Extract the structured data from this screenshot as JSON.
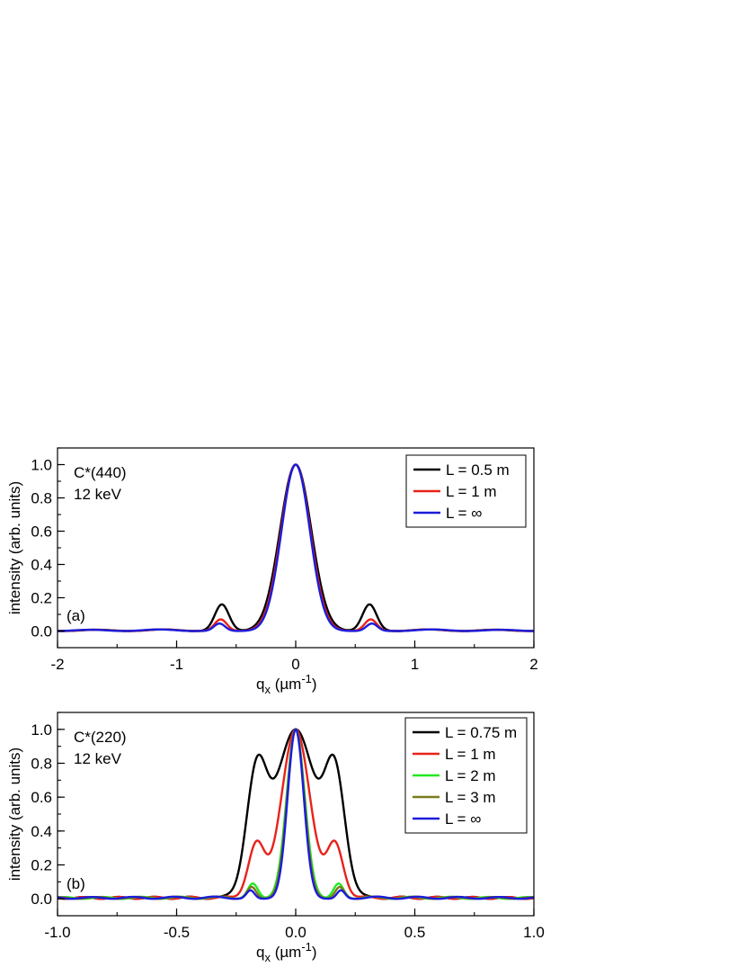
{
  "chart_data": [
    {
      "type": "line",
      "panel_label": "(a)",
      "annotation": [
        "C*(440)",
        "12 keV"
      ],
      "xlabel": "q",
      "xlabel_sub": "x",
      "xlabel_units": " (µm",
      "xlabel_sup": "-1",
      "xlabel_close": ")",
      "ylabel": "intensity (arb. units)",
      "xlim": [
        -2,
        2
      ],
      "ylim": [
        -0.1,
        1.1
      ],
      "xticks": [
        -2,
        -1,
        0,
        1,
        2
      ],
      "xtick_labels": [
        "-2",
        "-1",
        "0",
        "1",
        "2"
      ],
      "yticks": [
        0.0,
        0.2,
        0.4,
        0.6,
        0.8,
        1.0
      ],
      "ytick_labels": [
        "0.0",
        "0.2",
        "0.4",
        "0.6",
        "0.8",
        "1.0"
      ],
      "legend_position": "top-right",
      "grid": false,
      "series": [
        {
          "name": "L = 0.5 m",
          "color": "#000000",
          "width": 0.31,
          "side_level": 0.16,
          "side_pos": 0.62,
          "side_width": 0.14
        },
        {
          "name": "L = 1 m",
          "color": "#e8221a",
          "width": 0.29,
          "side_level": 0.07,
          "side_pos": 0.63,
          "side_width": 0.12
        },
        {
          "name": "L = ∞",
          "color": "#1c1cd9",
          "width": 0.28,
          "side_level": 0.045,
          "side_pos": 0.64,
          "side_width": 0.11
        }
      ]
    },
    {
      "type": "line",
      "panel_label": "(b)",
      "annotation": [
        "C*(220)",
        "12 keV"
      ],
      "xlabel": "q",
      "xlabel_sub": "x",
      "xlabel_units": " (µm",
      "xlabel_sup": "-1",
      "xlabel_close": ")",
      "ylabel": "intensity (arb. units)",
      "xlim": [
        -1.0,
        1.0
      ],
      "ylim": [
        -0.1,
        1.1
      ],
      "xticks": [
        -1.0,
        -0.5,
        0.0,
        0.5,
        1.0
      ],
      "xtick_labels": [
        "-1.0",
        "-0.5",
        "0.0",
        "0.5",
        "1.0"
      ],
      "yticks": [
        0.0,
        0.2,
        0.4,
        0.6,
        0.8,
        1.0
      ],
      "ytick_labels": [
        "0.0",
        "0.2",
        "0.4",
        "0.6",
        "0.8",
        "1.0"
      ],
      "legend_position": "top-right",
      "grid": false,
      "series": [
        {
          "name": "L = 0.75 m",
          "color": "#000000",
          "width": 0.2,
          "side_level": 0.68,
          "side_pos": 0.165,
          "side_width": 0.1
        },
        {
          "name": "L = 1 m",
          "color": "#e8221a",
          "width": 0.14,
          "side_level": 0.32,
          "side_pos": 0.165,
          "side_width": 0.08
        },
        {
          "name": "L = 2 m",
          "color": "#22e822",
          "width": 0.09,
          "side_level": 0.09,
          "side_pos": 0.18,
          "side_width": 0.05
        },
        {
          "name": "L = 3 m",
          "color": "#7a7a1a",
          "width": 0.085,
          "side_level": 0.07,
          "side_pos": 0.185,
          "side_width": 0.045
        },
        {
          "name": "L = ∞",
          "color": "#1c1cd9",
          "width": 0.08,
          "side_level": 0.05,
          "side_pos": 0.19,
          "side_width": 0.04
        }
      ]
    }
  ]
}
